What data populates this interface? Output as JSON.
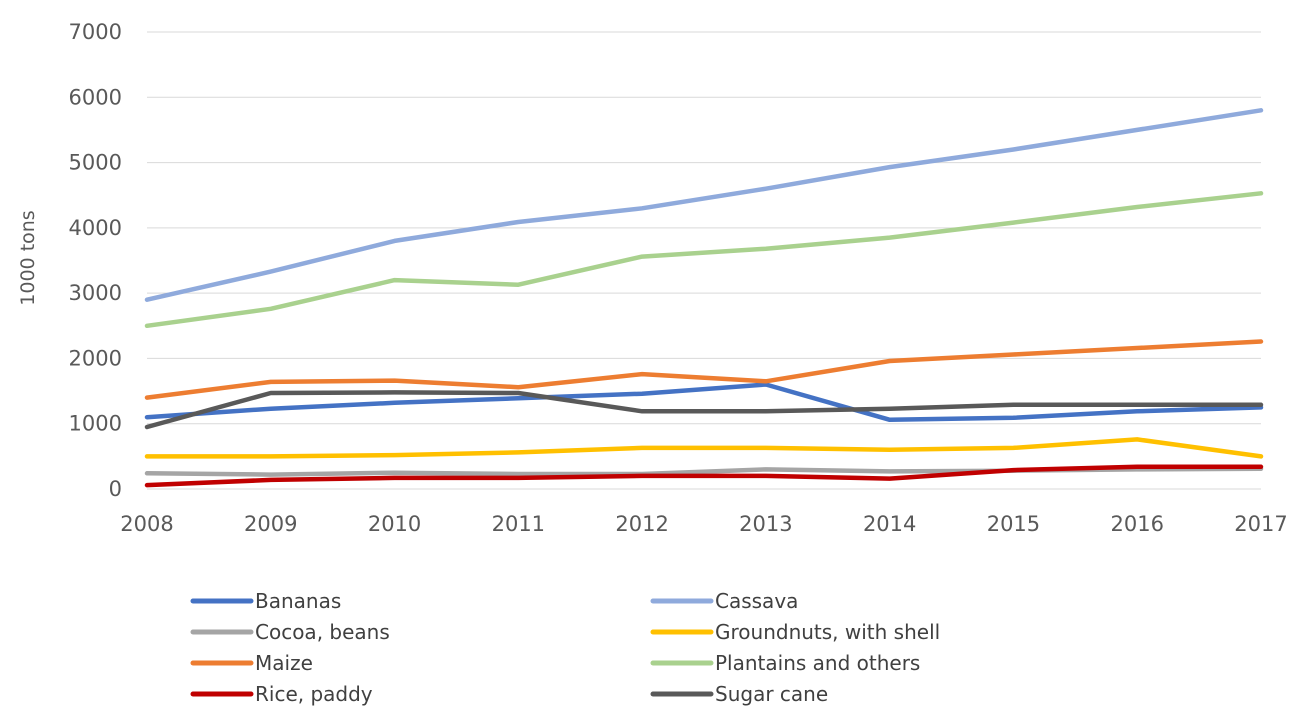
{
  "chart_data": {
    "type": "line",
    "title": "",
    "xlabel": "",
    "ylabel": "1000 tons",
    "ylim": [
      0,
      7000
    ],
    "yticks": [
      0,
      1000,
      2000,
      3000,
      4000,
      5000,
      6000,
      7000
    ],
    "grid": true,
    "legend_position": "bottom",
    "categories": [
      "2008",
      "2009",
      "2010",
      "2011",
      "2012",
      "2013",
      "2014",
      "2015",
      "2016",
      "2017"
    ],
    "series": [
      {
        "name": "Bananas",
        "color": "#4472c4",
        "values": [
          1100,
          1230,
          1320,
          1390,
          1460,
          1600,
          1060,
          1090,
          1190,
          1250
        ]
      },
      {
        "name": "Cassava",
        "color": "#8faadc",
        "values": [
          2900,
          3330,
          3800,
          4090,
          4300,
          4600,
          4930,
          5200,
          5500,
          5800
        ]
      },
      {
        "name": "Cocoa, beans",
        "color": "#a5a5a5",
        "values": [
          240,
          220,
          250,
          230,
          230,
          300,
          270,
          280,
          300,
          310
        ]
      },
      {
        "name": "Groundnuts, with shell",
        "color": "#ffc000",
        "values": [
          500,
          500,
          520,
          560,
          630,
          630,
          600,
          630,
          760,
          500
        ]
      },
      {
        "name": "Maize",
        "color": "#ed7d31",
        "values": [
          1400,
          1640,
          1660,
          1560,
          1760,
          1650,
          1960,
          2060,
          2160,
          2260
        ]
      },
      {
        "name": "Plantains and others",
        "color": "#a9d18e",
        "values": [
          2500,
          2760,
          3200,
          3130,
          3560,
          3680,
          3850,
          4080,
          4320,
          4530
        ]
      },
      {
        "name": "Rice, paddy",
        "color": "#c00000",
        "values": [
          60,
          140,
          170,
          170,
          200,
          200,
          160,
          290,
          340,
          340
        ]
      },
      {
        "name": "Sugar cane",
        "color": "#595959",
        "values": [
          950,
          1470,
          1480,
          1470,
          1190,
          1190,
          1230,
          1290,
          1290,
          1290
        ]
      }
    ]
  }
}
